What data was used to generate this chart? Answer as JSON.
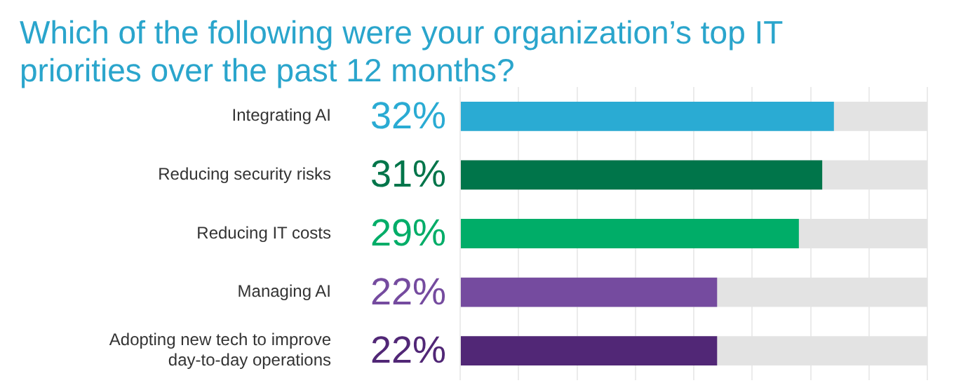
{
  "chart_data": {
    "type": "bar",
    "orientation": "horizontal",
    "title": "Which of the following were your organization’s top IT priorities over the past 12 months?",
    "categories": [
      "Integrating AI",
      "Reducing security risks",
      "Reducing IT costs",
      "Managing AI",
      "Adopting new tech to improve day-to-day operations"
    ],
    "values": [
      32,
      31,
      29,
      22,
      22
    ],
    "colors": [
      "#2aabd3",
      "#00754a",
      "#00ad68",
      "#754b9f",
      "#512776"
    ],
    "value_labels": [
      "32%",
      "31%",
      "29%",
      "22%",
      "22%"
    ],
    "xlim": [
      0,
      40
    ],
    "xticks": [
      {
        "value": 0,
        "label": null
      },
      {
        "value": 5,
        "label": null
      },
      {
        "value": 10,
        "label": null
      },
      {
        "value": 15,
        "label": null
      },
      {
        "value": 20,
        "label": null
      },
      {
        "value": 25,
        "label": null
      },
      {
        "value": 30,
        "label": null
      },
      {
        "value": 35,
        "label": null
      },
      {
        "value": 40,
        "label": null
      }
    ],
    "grid": "x",
    "legend": false,
    "tick_labels": "y"
  }
}
